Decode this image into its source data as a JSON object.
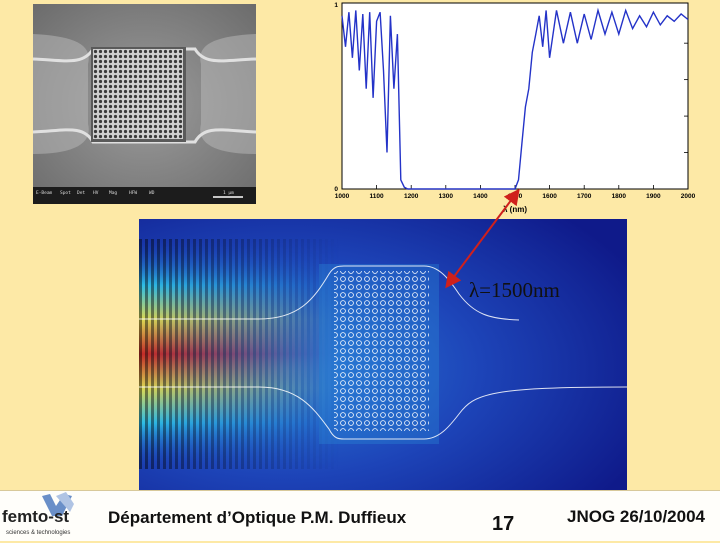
{
  "sem": {
    "scalebar": [
      "E-Beam",
      "Spot",
      "Det",
      "HV",
      "Mag",
      "HFW",
      "WD",
      "1 μm"
    ]
  },
  "chart_data": {
    "type": "line",
    "title": "",
    "xlabel": "λ (nm)",
    "ylabel": "",
    "xlim": [
      1000,
      2000
    ],
    "ylim": [
      0,
      1
    ],
    "x_ticks": [
      "1000",
      "1100",
      "1200",
      "1300",
      "1400",
      "1500",
      "1600",
      "1700",
      "1800",
      "1900",
      "2000"
    ],
    "y_ticks": [
      "0",
      "1"
    ],
    "series": [
      {
        "x": [
          1000,
          1010,
          1020,
          1030,
          1040,
          1050,
          1060,
          1070,
          1080,
          1090,
          1100,
          1110,
          1120,
          1130,
          1140,
          1150,
          1160,
          1170,
          1180,
          1190,
          1200,
          1210,
          1300,
          1400,
          1500,
          1510,
          1520,
          1530,
          1540,
          1550,
          1560,
          1570,
          1580,
          1590,
          1600,
          1620,
          1640,
          1660,
          1680,
          1700,
          1720,
          1740,
          1760,
          1780,
          1800,
          1820,
          1840,
          1860,
          1880,
          1900,
          1920,
          1940,
          1960,
          1980,
          2000
        ],
        "y": [
          0.95,
          0.78,
          0.97,
          0.72,
          0.98,
          0.65,
          0.96,
          0.55,
          0.97,
          0.5,
          0.92,
          0.97,
          0.65,
          0.2,
          0.95,
          0.55,
          0.85,
          0.05,
          0.01,
          0.0,
          0.0,
          0.0,
          0.0,
          0.0,
          0.0,
          0.05,
          0.25,
          0.45,
          0.55,
          0.75,
          0.85,
          0.95,
          0.78,
          0.98,
          0.72,
          0.98,
          0.8,
          0.97,
          0.8,
          0.96,
          0.82,
          0.98,
          0.85,
          0.97,
          0.85,
          0.98,
          0.88,
          0.95,
          0.89,
          0.97,
          0.9,
          0.95,
          0.92,
          0.96,
          0.93
        ]
      }
    ]
  },
  "annotation": {
    "lambda_label": "λ=1500nm",
    "arrow_wavelength_nm": 1500
  },
  "footer": {
    "logo_text": "femto-st",
    "logo_subtitle": "sciences & technologies",
    "title": "Département d’Optique P.M. Duffieux",
    "page_number": "17",
    "conference": "JNOG 26/10/2004"
  },
  "colors": {
    "background": "#fde9a6",
    "curve": "#2433c8",
    "arrow": "#d0201c"
  }
}
